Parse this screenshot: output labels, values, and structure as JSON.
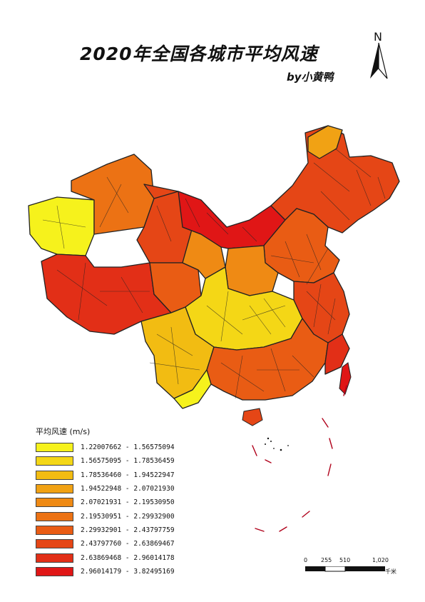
{
  "title": "2020年全国各城市平均风速",
  "byline": "by小黄鸭",
  "north_arrow": {
    "label": "N"
  },
  "legend": {
    "title": "平均风速 (m/s)",
    "classes": [
      {
        "label": "1.22007662 - 1.56575094",
        "color": "#f6f21c"
      },
      {
        "label": "1.56575095 - 1.78536459",
        "color": "#f4d716"
      },
      {
        "label": "1.78536460 - 1.94522947",
        "color": "#f2bc12"
      },
      {
        "label": "1.94522948 - 2.07021930",
        "color": "#f1a214"
      },
      {
        "label": "2.07021931 - 2.19530950",
        "color": "#ef8a14"
      },
      {
        "label": "2.19530951 - 2.29932900",
        "color": "#ec7214"
      },
      {
        "label": "2.29932901 - 2.43797759",
        "color": "#e95c14"
      },
      {
        "label": "2.43797760 - 2.63869467",
        "color": "#e54616"
      },
      {
        "label": "2.63869468 - 2.96014178",
        "color": "#e22f17"
      },
      {
        "label": "2.96014179 - 3.82495169",
        "color": "#e01616"
      }
    ]
  },
  "scale_bar": {
    "ticks": [
      "0",
      "255",
      "510",
      "1,020"
    ],
    "unit": "千米"
  }
}
